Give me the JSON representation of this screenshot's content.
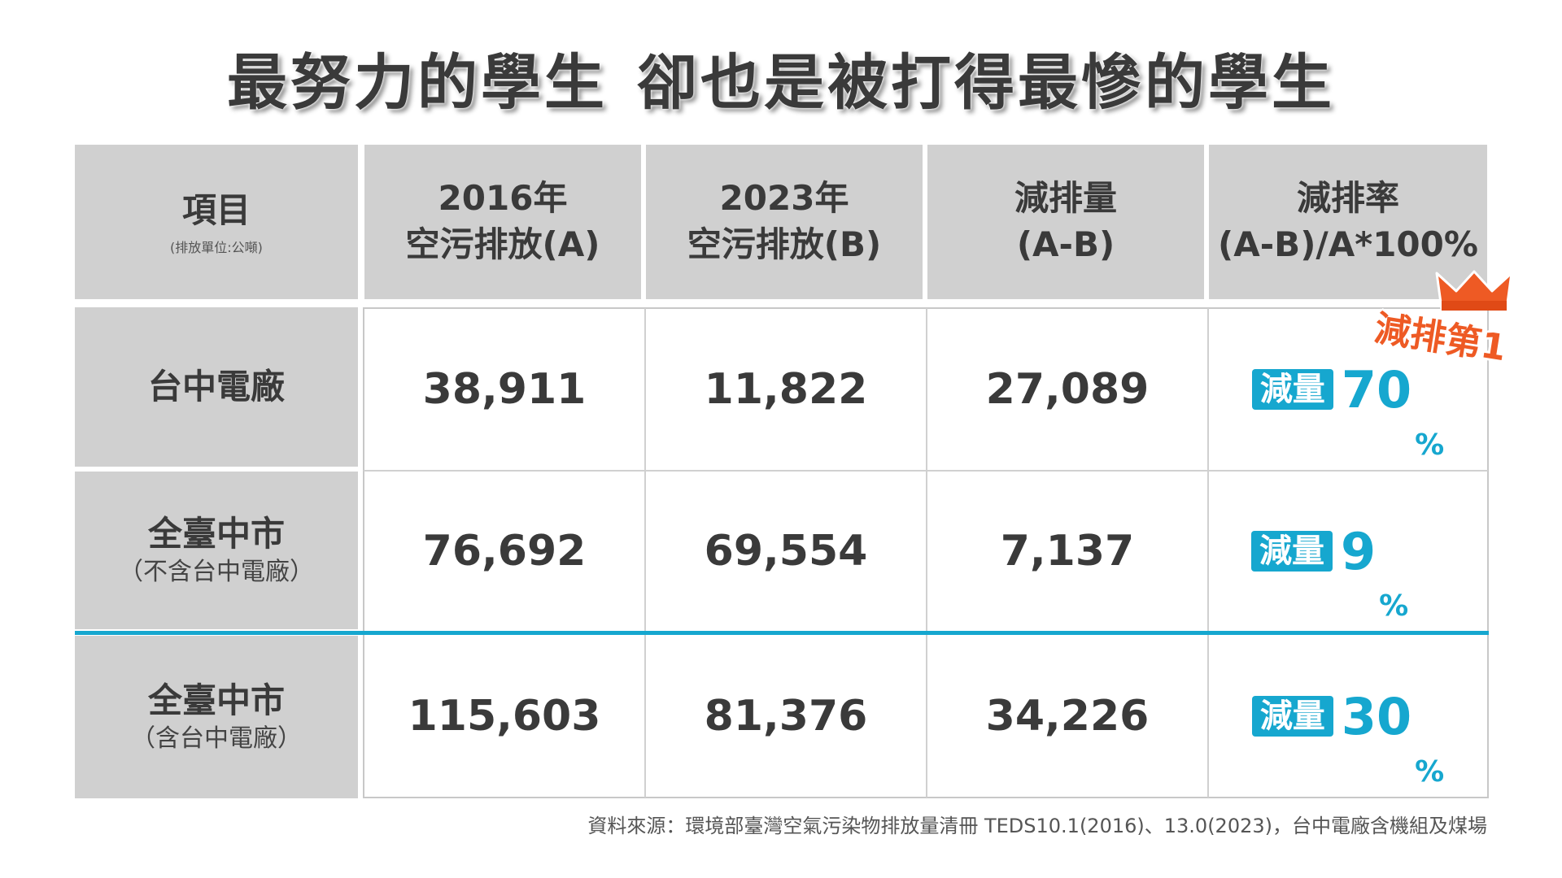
{
  "title": {
    "part1": "最努力的學生",
    "part2": "卻也是被打得最慘的學生"
  },
  "headers": {
    "item": "項目",
    "item_note": "(排放單位:公噸)",
    "col_a_line1": "2016年",
    "col_a_line2": "空污排放(A)",
    "col_b_line1": "2023年",
    "col_b_line2": "空污排放(B)",
    "col_c_line1": "減排量",
    "col_c_line2": "(A-B)",
    "col_d_line1": "減排率",
    "col_d_line2": "(A-B)/A*100%"
  },
  "rows": [
    {
      "label": "台中電廠",
      "sub": "",
      "a": "38,911",
      "b": "11,822",
      "c": "27,089",
      "badge": "減量",
      "rate": "70",
      "pct": "%"
    },
    {
      "label": "全臺中市",
      "sub": "（不含台中電廠）",
      "a": "76,692",
      "b": "69,554",
      "c": "7,137",
      "badge": "減量",
      "rate": "9",
      "pct": "%"
    },
    {
      "label": "全臺中市",
      "sub": "（含台中電廠）",
      "a": "115,603",
      "b": "81,376",
      "c": "34,226",
      "badge": "減量",
      "rate": "30",
      "pct": "%"
    }
  ],
  "stamp": "減排第1",
  "source": "資料來源：環境部臺灣空氣污染物排放量清冊 TEDS10.1(2016)、13.0(2023)，台中電廠含機組及煤場",
  "colors": {
    "accent": "#16a7cf",
    "stamp": "#ee5a24",
    "header_bg": "#d0d0d0"
  }
}
